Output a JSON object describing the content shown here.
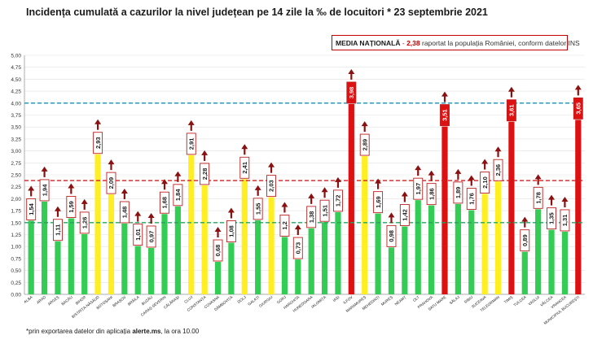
{
  "chart_data": {
    "type": "bar",
    "title": "Incidența cumulată a cazurilor la nivel județean pe 14 zile la ‰ de locuitori * 23 septembrie 2021",
    "legend": {
      "label": "MEDIA NAȚIONALĂ",
      "separator": " - ",
      "value_text": "2,38",
      "text": " raportat la populația României, conform datelor INS"
    },
    "footnote": {
      "prefix": "*prin exportarea datelor din aplicația ",
      "source": "alerte.ms",
      "suffix": ", la ora 10.00"
    },
    "ylim": [
      0,
      5
    ],
    "y_ticks": [
      "0,00",
      "0,25",
      "0,50",
      "0,75",
      "1,00",
      "1,25",
      "1,50",
      "1,75",
      "2,00",
      "2,25",
      "2,50",
      "2,75",
      "3,00",
      "3,25",
      "3,50",
      "3,75",
      "4,00",
      "4,25",
      "4,50",
      "4,75",
      "5,00"
    ],
    "reference_lines": [
      {
        "value": 4.0,
        "color": "#1f8fb0",
        "style": "dashed"
      },
      {
        "value": 2.38,
        "color": "#d02020",
        "style": "dashed"
      },
      {
        "value": 1.5,
        "color": "#2aa060",
        "style": "dashed"
      }
    ],
    "colors": {
      "green": "#33cc55",
      "yellow": "#ffee22",
      "red": "#dd1111",
      "arrow": "#8b1010",
      "label_border": "#c02020"
    },
    "categories": [
      "ALBA",
      "ARAD",
      "ARGEȘ",
      "BACĂU",
      "BIHOR",
      "BISTRIȚA-NĂSĂUD",
      "BOTOȘANI",
      "BRAȘOV",
      "BRĂILA",
      "BUZĂU",
      "CARAȘ-SEVERIN",
      "CĂLĂRAȘI",
      "CLUJ",
      "CONSTANȚA",
      "COVASNA",
      "DÂMBOVIȚA",
      "DOLJ",
      "GALAȚI",
      "GIURGIU",
      "GORJ",
      "HARGHITA",
      "HUNEDOARA",
      "IALOMIȚA",
      "IAȘI",
      "ILFOV",
      "MARAMUREȘ",
      "MEHEDINȚI",
      "MUREȘ",
      "NEAMȚ",
      "OLT",
      "PRAHOVA",
      "SATU MARE",
      "SĂLAJ",
      "SIBIU",
      "SUCEAVA",
      "TELEORMAN",
      "TIMIȘ",
      "TULCEA",
      "VASLUI",
      "VÂLCEA",
      "VRANCEA",
      "MUNICIPIUL BUCUREȘTI"
    ],
    "values": [
      1.54,
      1.94,
      1.11,
      1.59,
      1.26,
      2.93,
      2.09,
      1.48,
      1.01,
      0.97,
      1.68,
      1.84,
      2.91,
      2.28,
      0.68,
      1.08,
      2.41,
      1.55,
      2.03,
      1.2,
      0.73,
      1.38,
      1.51,
      1.72,
      3.98,
      2.89,
      1.69,
      0.98,
      1.42,
      1.97,
      1.86,
      3.51,
      1.89,
      1.76,
      2.1,
      2.36,
      3.61,
      0.89,
      1.78,
      1.35,
      1.31,
      3.65
    ],
    "value_labels": [
      "1,54",
      "1,94",
      "1,11",
      "1,59",
      "1,26",
      "2,93",
      "2,09",
      "1,48",
      "1,01",
      "0,97",
      "1,68",
      "1,84",
      "2,91",
      "2,28",
      "0,68",
      "1,08",
      "2,41",
      "1,55",
      "2,03",
      "1,2",
      "0,73",
      "1,38",
      "1,51",
      "1,72",
      "3,98",
      "2,89",
      "1,69",
      "0,98",
      "1,42",
      "1,97",
      "1,86",
      "3,51",
      "1,89",
      "1,76",
      "2,10",
      "2,36",
      "3,61",
      "0,89",
      "1,78",
      "1,35",
      "1,31",
      "3,65"
    ],
    "bar_colors": [
      "green",
      "green",
      "green",
      "green",
      "green",
      "yellow",
      "yellow",
      "green",
      "green",
      "green",
      "green",
      "green",
      "yellow",
      "yellow",
      "green",
      "green",
      "yellow",
      "green",
      "yellow",
      "green",
      "green",
      "green",
      "green",
      "green",
      "red",
      "yellow",
      "green",
      "green",
      "green",
      "green",
      "green",
      "red",
      "green",
      "green",
      "yellow",
      "yellow",
      "red",
      "green",
      "green",
      "green",
      "green",
      "red"
    ]
  }
}
